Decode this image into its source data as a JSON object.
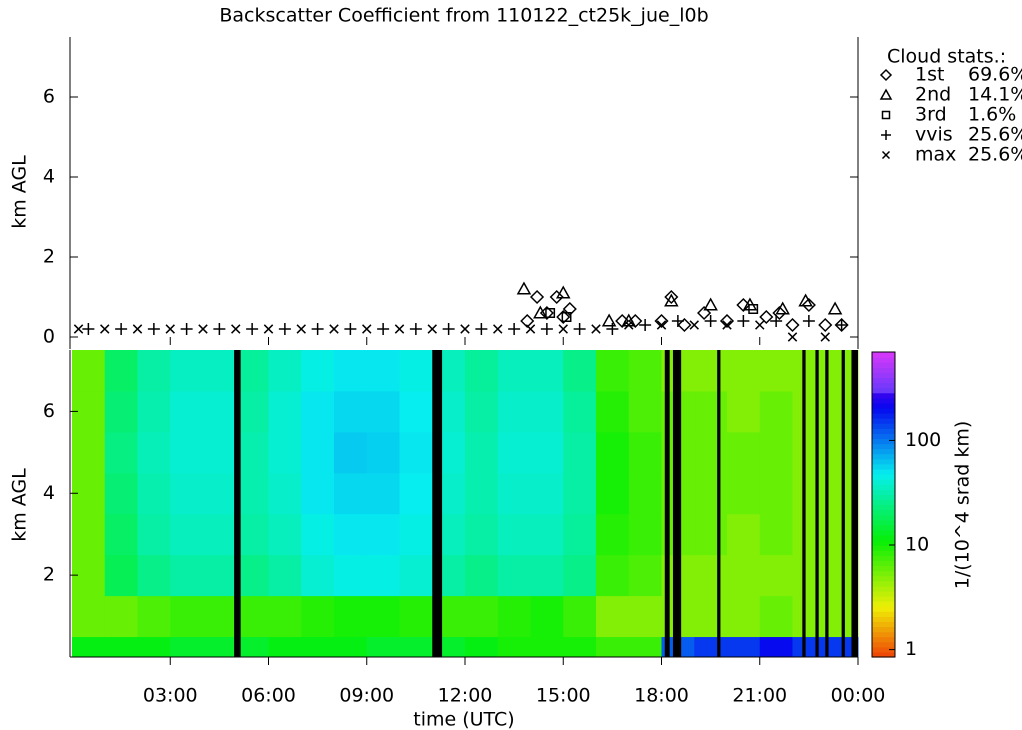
{
  "chart_data": [
    {
      "type": "scatter",
      "title": "Backscatter Coefficient from 110122_ct25k_jue_l0b",
      "ylabel": "km AGL",
      "xlim": [
        0,
        24
      ],
      "ylim": [
        -0.3,
        7.5
      ],
      "yticks": [
        0,
        2,
        4,
        6
      ],
      "legend_title": "Cloud stats.:",
      "legend_position": "upper right",
      "series": [
        {
          "name": "1st",
          "label": "69.6%",
          "marker": "diamond",
          "color": "#000000",
          "x": [
            13.9,
            14.2,
            14.5,
            14.8,
            15.0,
            15.2,
            16.8,
            17.2,
            18.0,
            18.3,
            18.7,
            19.3,
            20.0,
            20.5,
            21.2,
            21.6,
            22.0,
            22.5,
            23.0,
            23.5
          ],
          "y": [
            0.4,
            1.0,
            0.6,
            1.0,
            0.5,
            0.7,
            0.4,
            0.4,
            0.4,
            1.0,
            0.3,
            0.6,
            0.4,
            0.8,
            0.5,
            0.6,
            0.3,
            0.8,
            0.3,
            0.3
          ]
        },
        {
          "name": "2nd",
          "label": "14.1%",
          "marker": "triangle",
          "color": "#000000",
          "x": [
            13.8,
            14.3,
            15.0,
            16.4,
            17.0,
            18.3,
            19.5,
            20.7,
            21.7,
            22.4,
            23.3
          ],
          "y": [
            1.2,
            0.6,
            1.1,
            0.4,
            0.4,
            0.9,
            0.8,
            0.8,
            0.7,
            0.9,
            0.7
          ]
        },
        {
          "name": "3rd",
          "label": "1.6%",
          "marker": "square",
          "color": "#000000",
          "x": [
            14.6,
            15.1,
            20.8
          ],
          "y": [
            0.6,
            0.5,
            0.7
          ]
        },
        {
          "name": "vvis",
          "label": "25.6%",
          "marker": "plus",
          "color": "#000000",
          "x": [
            0.5,
            1.5,
            2.5,
            3.5,
            4.5,
            5.5,
            6.5,
            7.5,
            8.5,
            9.5,
            10.5,
            11.5,
            12.5,
            13.5,
            14.5,
            15.5,
            16.5,
            17.5,
            18.5,
            19.5,
            20.5,
            21.5,
            22.5,
            23.5
          ],
          "y": [
            0.2,
            0.2,
            0.2,
            0.2,
            0.2,
            0.2,
            0.2,
            0.2,
            0.2,
            0.2,
            0.2,
            0.2,
            0.2,
            0.2,
            0.2,
            0.2,
            0.2,
            0.3,
            0.4,
            0.4,
            0.4,
            0.4,
            0.4,
            0.3
          ]
        },
        {
          "name": "max",
          "label": "25.6%",
          "marker": "cross",
          "color": "#000000",
          "x": [
            0.2,
            1.0,
            2.0,
            3.0,
            4.0,
            5.0,
            6.0,
            7.0,
            8.0,
            9.0,
            10.0,
            11.0,
            12.0,
            13.0,
            14.0,
            15.0,
            16.0,
            17.0,
            18.0,
            19.0,
            20.0,
            21.0,
            22.0,
            23.0
          ],
          "y": [
            0.2,
            0.2,
            0.2,
            0.2,
            0.2,
            0.2,
            0.2,
            0.2,
            0.2,
            0.2,
            0.2,
            0.2,
            0.2,
            0.2,
            0.2,
            0.2,
            0.2,
            0.3,
            0.3,
            0.3,
            0.3,
            0.3,
            0.0,
            0.0
          ]
        }
      ]
    },
    {
      "type": "heatmap",
      "ylabel": "km AGL",
      "xlabel": "time (UTC)",
      "xlim": [
        0,
        24
      ],
      "xticks": [
        {
          "value": 3,
          "label": "03:00"
        },
        {
          "value": 6,
          "label": "06:00"
        },
        {
          "value": 9,
          "label": "09:00"
        },
        {
          "value": 12,
          "label": "12:00"
        },
        {
          "value": 15,
          "label": "15:00"
        },
        {
          "value": 18,
          "label": "18:00"
        },
        {
          "value": 21,
          "label": "21:00"
        },
        {
          "value": 24,
          "label": "00:00"
        }
      ],
      "ylim": [
        0,
        7.5
      ],
      "yticks": [
        2,
        4,
        6
      ],
      "xbins": [
        0,
        1,
        2,
        3,
        4,
        5,
        6,
        7,
        8,
        9,
        10,
        11,
        12,
        13,
        14,
        15,
        16,
        17,
        18,
        19,
        20,
        21,
        22,
        23,
        24
      ],
      "ybins": [
        0,
        0.5,
        1.5,
        2.5,
        3.5,
        4.5,
        5.5,
        6.5,
        7.5
      ],
      "gaps": [
        [
          4.95,
          5.15
        ],
        [
          11.0,
          11.3
        ],
        [
          18.1,
          18.25
        ],
        [
          18.35,
          18.6
        ],
        [
          19.7,
          19.8
        ],
        [
          22.3,
          22.4
        ],
        [
          22.7,
          22.8
        ],
        [
          23.0,
          23.1
        ],
        [
          23.5,
          23.6
        ],
        [
          23.8,
          24.0
        ]
      ],
      "z": [
        [
          12,
          12,
          12,
          14,
          14,
          14,
          12,
          12,
          12,
          14,
          14,
          14,
          12,
          10,
          10,
          10,
          8,
          8,
          120,
          150,
          150,
          200,
          150,
          150
        ],
        [
          6,
          6,
          7,
          8,
          8,
          8,
          8,
          9,
          10,
          10,
          9,
          8,
          8,
          9,
          10,
          8,
          5,
          5,
          5,
          5,
          5,
          6,
          5,
          5
        ],
        [
          6,
          18,
          25,
          30,
          30,
          25,
          30,
          40,
          45,
          45,
          40,
          30,
          25,
          30,
          30,
          25,
          8,
          7,
          5,
          5,
          5,
          5,
          5,
          5
        ],
        [
          6,
          20,
          30,
          35,
          35,
          30,
          35,
          45,
          50,
          50,
          45,
          35,
          30,
          35,
          35,
          28,
          9,
          8,
          6,
          6,
          5,
          6,
          5,
          5
        ],
        [
          6,
          22,
          32,
          38,
          38,
          32,
          38,
          50,
          55,
          55,
          48,
          38,
          32,
          38,
          38,
          30,
          10,
          8,
          6,
          6,
          6,
          6,
          5,
          5
        ],
        [
          6,
          24,
          34,
          40,
          40,
          32,
          40,
          50,
          60,
          58,
          50,
          40,
          32,
          40,
          40,
          30,
          10,
          8,
          6,
          6,
          6,
          6,
          5,
          5
        ],
        [
          6,
          22,
          32,
          40,
          40,
          30,
          40,
          50,
          55,
          55,
          48,
          38,
          30,
          38,
          38,
          28,
          9,
          7,
          6,
          6,
          5,
          6,
          5,
          5
        ],
        [
          6,
          20,
          30,
          36,
          36,
          28,
          36,
          45,
          50,
          50,
          45,
          35,
          28,
          35,
          35,
          25,
          8,
          7,
          5,
          5,
          5,
          5,
          5,
          5
        ]
      ],
      "colorbar_label": "1/(10^4 srad km)",
      "zlim": [
        0.85,
        700
      ],
      "zscale": "log",
      "zticks": [
        1,
        10,
        100
      ]
    }
  ]
}
